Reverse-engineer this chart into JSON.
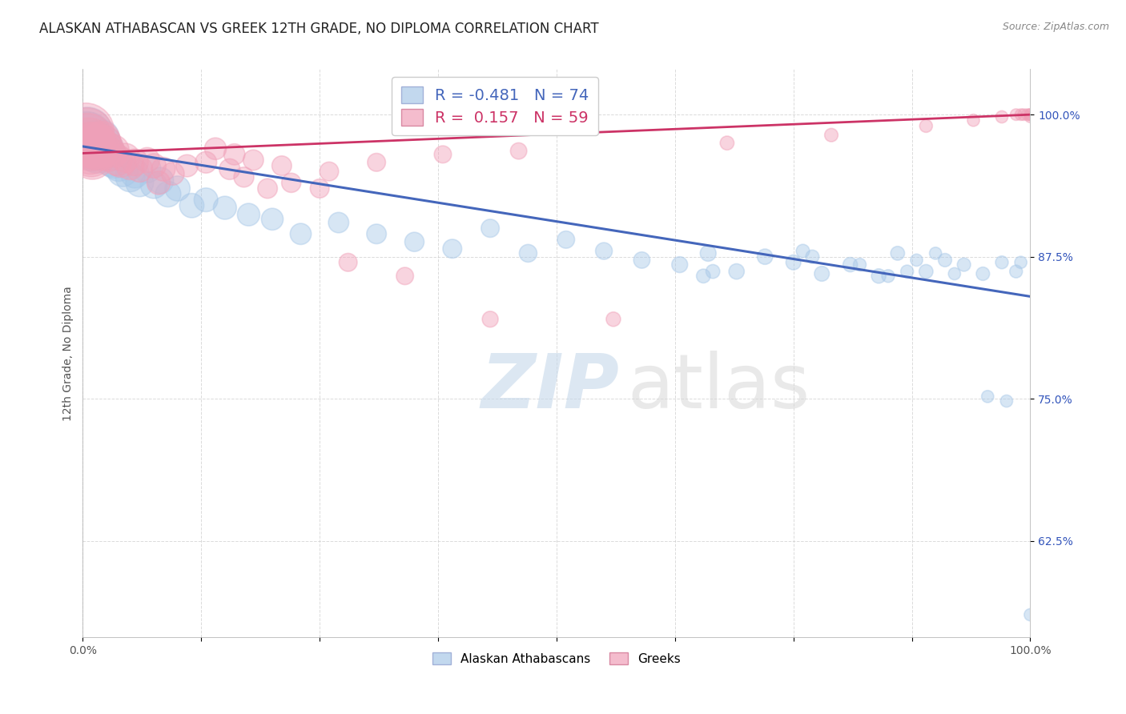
{
  "title": "ALASKAN ATHABASCAN VS GREEK 12TH GRADE, NO DIPLOMA CORRELATION CHART",
  "source": "Source: ZipAtlas.com",
  "ylabel": "12th Grade, No Diploma",
  "xlim": [
    0.0,
    1.0
  ],
  "ylim": [
    0.54,
    1.04
  ],
  "yticks": [
    0.625,
    0.75,
    0.875,
    1.0
  ],
  "ytick_labels": [
    "62.5%",
    "75.0%",
    "87.5%",
    "100.0%"
  ],
  "xticks": [
    0.0,
    0.125,
    0.25,
    0.375,
    0.5,
    0.625,
    0.75,
    0.875,
    1.0
  ],
  "xtick_labels": [
    "0.0%",
    "",
    "",
    "",
    "",
    "",
    "",
    "",
    "100.0%"
  ],
  "blue_color": "#a8c8e8",
  "pink_color": "#f0a0b8",
  "blue_line_color": "#4466bb",
  "pink_line_color": "#cc3366",
  "legend_r_blue": "-0.481",
  "legend_n_blue": "74",
  "legend_r_pink": "0.157",
  "legend_n_pink": "59",
  "blue_trend_x": [
    0.0,
    1.0
  ],
  "blue_trend_y": [
    0.972,
    0.84
  ],
  "pink_trend_x": [
    0.0,
    1.0
  ],
  "pink_trend_y": [
    0.966,
    1.0
  ],
  "blue_scatter_x": [
    0.003,
    0.005,
    0.006,
    0.007,
    0.008,
    0.009,
    0.01,
    0.011,
    0.012,
    0.013,
    0.015,
    0.016,
    0.017,
    0.018,
    0.02,
    0.022,
    0.025,
    0.028,
    0.03,
    0.033,
    0.038,
    0.042,
    0.05,
    0.055,
    0.06,
    0.068,
    0.075,
    0.082,
    0.09,
    0.1,
    0.115,
    0.13,
    0.15,
    0.175,
    0.2,
    0.23,
    0.27,
    0.31,
    0.35,
    0.39,
    0.43,
    0.47,
    0.51,
    0.55,
    0.59,
    0.63,
    0.66,
    0.69,
    0.72,
    0.75,
    0.78,
    0.81,
    0.84,
    0.86,
    0.89,
    0.91,
    0.93,
    0.95,
    0.97,
    0.985,
    0.655,
    0.665,
    0.76,
    0.77,
    0.82,
    0.85,
    0.87,
    0.88,
    0.9,
    0.92,
    0.955,
    0.975,
    0.99,
    1.0
  ],
  "blue_scatter_y": [
    0.98,
    0.985,
    0.982,
    0.978,
    0.975,
    0.972,
    0.97,
    0.968,
    0.972,
    0.978,
    0.965,
    0.968,
    0.975,
    0.972,
    0.98,
    0.975,
    0.97,
    0.965,
    0.96,
    0.958,
    0.955,
    0.95,
    0.945,
    0.948,
    0.94,
    0.952,
    0.938,
    0.942,
    0.93,
    0.935,
    0.92,
    0.925,
    0.918,
    0.912,
    0.908,
    0.895,
    0.905,
    0.895,
    0.888,
    0.882,
    0.9,
    0.878,
    0.89,
    0.88,
    0.872,
    0.868,
    0.878,
    0.862,
    0.875,
    0.87,
    0.86,
    0.868,
    0.858,
    0.878,
    0.862,
    0.872,
    0.868,
    0.86,
    0.87,
    0.862,
    0.858,
    0.862,
    0.88,
    0.875,
    0.868,
    0.858,
    0.862,
    0.872,
    0.878,
    0.86,
    0.752,
    0.748,
    0.87,
    0.56
  ],
  "blue_scatter_size": [
    180,
    160,
    140,
    120,
    110,
    130,
    120,
    110,
    105,
    100,
    95,
    90,
    88,
    85,
    82,
    80,
    78,
    75,
    72,
    68,
    65,
    62,
    58,
    55,
    52,
    50,
    48,
    46,
    44,
    42,
    40,
    38,
    36,
    34,
    32,
    30,
    28,
    26,
    25,
    24,
    22,
    21,
    20,
    19,
    18,
    17,
    17,
    16,
    16,
    15,
    15,
    14,
    14,
    13,
    13,
    12,
    12,
    12,
    11,
    11,
    13,
    13,
    12,
    12,
    11,
    11,
    11,
    10,
    10,
    10,
    10,
    10,
    10,
    10
  ],
  "pink_scatter_x": [
    0.003,
    0.004,
    0.005,
    0.006,
    0.007,
    0.008,
    0.009,
    0.01,
    0.012,
    0.014,
    0.016,
    0.018,
    0.02,
    0.022,
    0.025,
    0.028,
    0.032,
    0.036,
    0.04,
    0.045,
    0.05,
    0.055,
    0.06,
    0.068,
    0.075,
    0.085,
    0.095,
    0.11,
    0.13,
    0.155,
    0.08,
    0.17,
    0.195,
    0.22,
    0.25,
    0.16,
    0.14,
    0.28,
    0.34,
    0.43,
    0.18,
    0.21,
    0.26,
    0.31,
    0.38,
    0.46,
    0.56,
    0.68,
    0.79,
    0.89,
    0.94,
    0.97,
    0.985,
    0.99,
    0.993,
    0.997,
    1.0,
    1.0,
    1.0
  ],
  "pink_scatter_y": [
    0.985,
    0.982,
    0.978,
    0.975,
    0.972,
    0.968,
    0.965,
    0.962,
    0.975,
    0.97,
    0.968,
    0.972,
    0.978,
    0.975,
    0.97,
    0.965,
    0.968,
    0.96,
    0.958,
    0.962,
    0.955,
    0.958,
    0.952,
    0.96,
    0.955,
    0.952,
    0.948,
    0.955,
    0.958,
    0.952,
    0.94,
    0.945,
    0.935,
    0.94,
    0.935,
    0.965,
    0.97,
    0.87,
    0.858,
    0.82,
    0.96,
    0.955,
    0.95,
    0.958,
    0.965,
    0.968,
    0.82,
    0.975,
    0.982,
    0.99,
    0.995,
    0.998,
    1.0,
    1.0,
    1.0,
    1.0,
    1.0,
    1.0,
    0.998
  ],
  "pink_scatter_size": [
    220,
    200,
    185,
    170,
    155,
    145,
    135,
    125,
    115,
    108,
    100,
    95,
    90,
    85,
    80,
    75,
    70,
    65,
    60,
    56,
    52,
    48,
    45,
    42,
    40,
    38,
    35,
    33,
    31,
    29,
    37,
    27,
    26,
    25,
    24,
    30,
    32,
    22,
    20,
    17,
    28,
    26,
    24,
    22,
    20,
    18,
    14,
    13,
    12,
    11,
    10,
    10,
    9,
    9,
    9,
    9,
    9,
    9,
    9
  ],
  "grid_color": "#cccccc",
  "background_color": "#ffffff",
  "title_fontsize": 12,
  "axis_label_fontsize": 10,
  "tick_fontsize": 10
}
